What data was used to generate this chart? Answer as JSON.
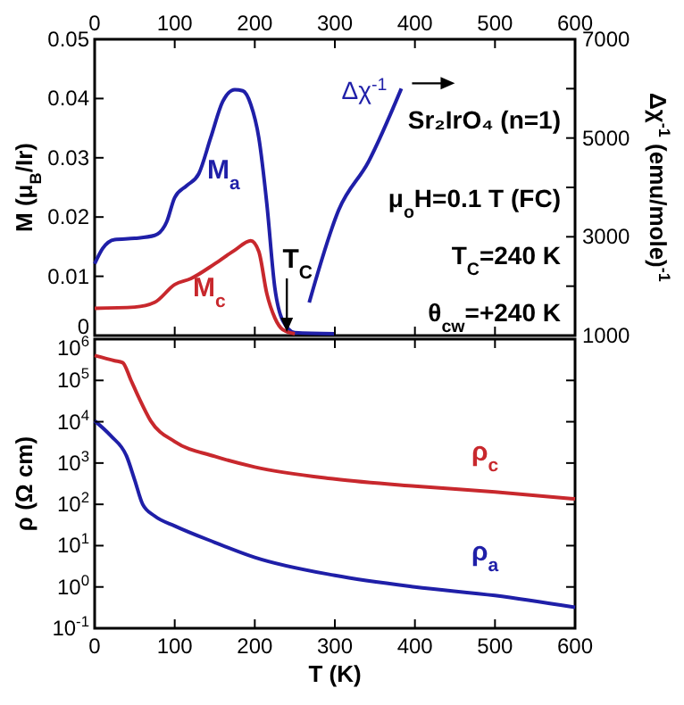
{
  "chart_data": [
    {
      "type": "line",
      "ylabel": "M (μ$_{B}$/Ir)",
      "y2label": "Δχ$^{-1}$ (emu/mole)$^{-1}$",
      "xlim": [
        0,
        600
      ],
      "xticks": [
        0,
        100,
        200,
        300,
        400,
        500,
        600
      ],
      "ylim": [
        0,
        0.05
      ],
      "yticks": [
        0,
        0.01,
        0.02,
        0.03,
        0.04,
        0.05
      ],
      "y2lim": [
        1000,
        7000
      ],
      "y2ticks": [
        1000,
        {
          "value": 2000,
          "label": null
        },
        3000,
        {
          "value": 4000,
          "label": null
        },
        5000,
        {
          "value": 6000,
          "label": null
        },
        7000
      ],
      "series": [
        {
          "name": "M$_{a}$",
          "color": "#1f1fa8",
          "x": [
            0,
            10,
            25,
            50,
            75,
            90,
            100,
            115,
            130,
            145,
            160,
            175,
            185,
            195,
            205,
            215,
            225,
            235,
            250,
            300
          ],
          "values": [
            0.0121,
            0.0147,
            0.0162,
            0.0164,
            0.0169,
            0.0192,
            0.0233,
            0.0253,
            0.0273,
            0.0334,
            0.0395,
            0.0415,
            0.0413,
            0.039,
            0.0334,
            0.0223,
            0.0081,
            0.0025,
            0.0005,
            0.0003
          ]
        },
        {
          "name": "M$_{c}$",
          "color": "#c8282d",
          "x": [
            0,
            50,
            75,
            100,
            120,
            150,
            175,
            195,
            205,
            215,
            225,
            235,
            250
          ],
          "values": [
            0.0046,
            0.0048,
            0.0056,
            0.0086,
            0.0096,
            0.0121,
            0.0144,
            0.016,
            0.0142,
            0.0071,
            0.003,
            0.001,
            0.0003
          ]
        },
        {
          "name": "Δχ$^{-1}$",
          "color": "#1f1fa8",
          "axis": "y2",
          "x": [
            268,
            305,
            342,
            383
          ],
          "values": [
            1670,
            3550,
            4520,
            6000
          ]
        }
      ],
      "annotations": [
        {
          "text": "T$_{C}$",
          "x": 240,
          "y": 0
        },
        "Sr₂IrO₄ (n=1)",
        "μ$_{o}$H=0.1 T (FC)",
        "T$_{C}$=240 K",
        "θ$_{cw}$=+240 K"
      ]
    },
    {
      "type": "line",
      "xlabel": "T (K)",
      "ylabel": "ρ (Ω cm)",
      "log": "y",
      "xlim": [
        0,
        600
      ],
      "xticks": [
        0,
        100,
        200,
        300,
        400,
        500,
        600
      ],
      "ylim": [
        0.1,
        1000000
      ],
      "yticks": [
        {
          "value": 0.1,
          "label": "10$^{-1}$"
        },
        {
          "value": 1,
          "label": "10$^{0}$"
        },
        {
          "value": 10,
          "label": "10$^{1}$"
        },
        {
          "value": 100,
          "label": "10$^{2}$"
        },
        {
          "value": 1000,
          "label": "10$^{3}$"
        },
        {
          "value": 10000,
          "label": "10$^{4}$"
        },
        {
          "value": 100000,
          "label": "10$^{5}$"
        },
        {
          "value": 1000000,
          "label": "10$^{6}$"
        }
      ],
      "series": [
        {
          "name": "ρ$_{c}$",
          "color": "#c8282d",
          "x": [
            0,
            25,
            35,
            45,
            55,
            70,
            100,
            150,
            200,
            300,
            400,
            500,
            600
          ],
          "values": [
            400000,
            300000,
            270000,
            105000,
            39000,
            10500,
            3300,
            1450,
            800,
            410,
            275,
            200,
            135
          ]
        },
        {
          "name": "ρ$_{a}$",
          "color": "#1f1fa8",
          "x": [
            0,
            20,
            40,
            50,
            60,
            75,
            100,
            150,
            200,
            300,
            400,
            500,
            600
          ],
          "values": [
            10500,
            4600,
            1450,
            390,
            100,
            52,
            30,
            12,
            5.2,
            1.9,
            1.0,
            0.62,
            0.32
          ]
        }
      ]
    }
  ]
}
